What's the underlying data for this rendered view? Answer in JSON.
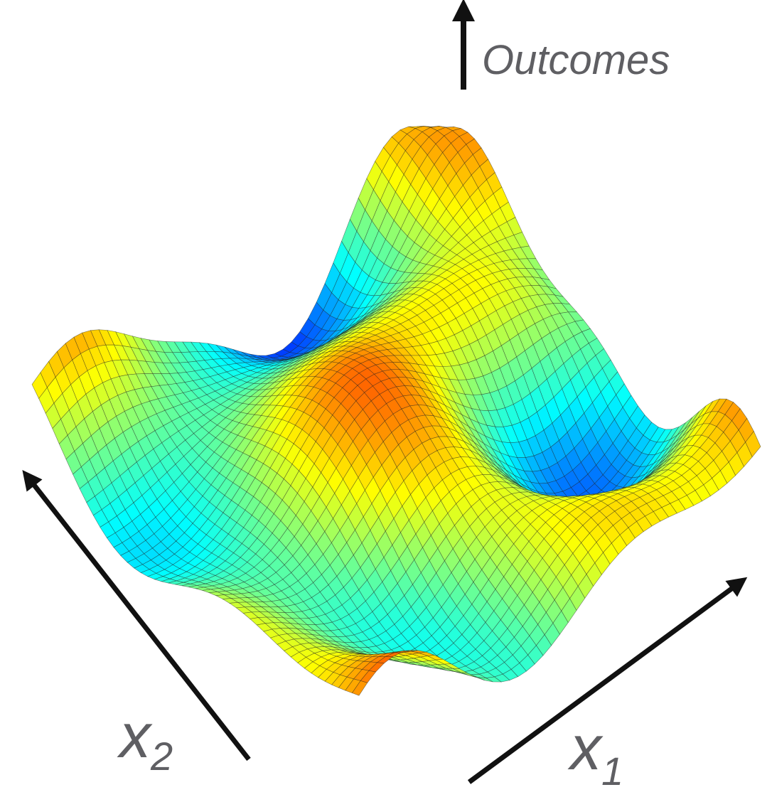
{
  "labels": {
    "z_axis": "Outcomes",
    "x1": {
      "base": "x",
      "subscript": "1"
    },
    "x2": {
      "base": "x",
      "subscript": "2"
    }
  }
}
